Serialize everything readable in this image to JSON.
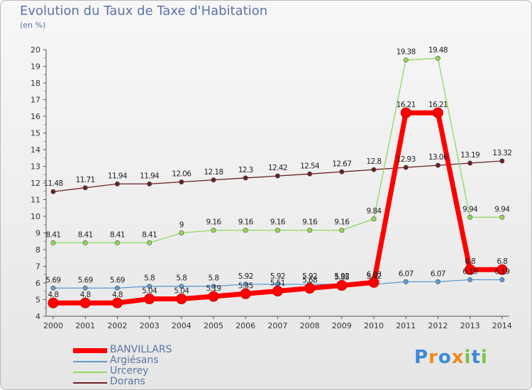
{
  "title": "Evolution du Taux de Taxe d'Habitation",
  "unit_label": "(en %)",
  "logo": {
    "text": "Proxiti",
    "colors": [
      "#3a8ad6",
      "#f08a1c",
      "#7cc242"
    ]
  },
  "chart_data": {
    "type": "line",
    "x": [
      "2000",
      "2001",
      "2002",
      "2003",
      "2004",
      "2005",
      "2006",
      "2007",
      "2008",
      "2009",
      "2010",
      "2011",
      "2012",
      "2013",
      "2014"
    ],
    "ylim": [
      4,
      20
    ],
    "yticks": [
      "4",
      "5",
      "6",
      "7",
      "8",
      "9",
      "10",
      "11",
      "12",
      "13",
      "14",
      "15",
      "16",
      "17",
      "18",
      "19",
      "20"
    ],
    "grid": false,
    "legend_position": "bottom-left",
    "series": [
      {
        "name": "Dorans",
        "color": "#6b1f24",
        "values": [
          11.48,
          11.71,
          11.94,
          11.94,
          12.06,
          12.18,
          12.3,
          12.42,
          12.54,
          12.67,
          12.8,
          12.93,
          13.06,
          13.19,
          13.32
        ],
        "labels": [
          "11.48",
          "11.71",
          "11.94",
          "11.94",
          "12.06",
          "12.18",
          "12.3",
          "12.42",
          "12.54",
          "12.67",
          "12.8",
          "12.93",
          "13.06",
          "13.19",
          "13.32"
        ]
      },
      {
        "name": "Urcerey",
        "color": "#8fd85a",
        "values": [
          8.41,
          8.41,
          8.41,
          8.41,
          9,
          9.16,
          9.16,
          9.16,
          9.16,
          9.16,
          9.84,
          19.38,
          19.48,
          9.94,
          9.94
        ],
        "labels": [
          "8.41",
          "8.41",
          "8.41",
          "8.41",
          "9",
          "9.16",
          "9.16",
          "9.16",
          "9.16",
          "9.16",
          "9.84",
          "19.38",
          "19.48",
          "9.94",
          "9.94"
        ]
      },
      {
        "name": "Argiésans",
        "color": "#5b9bd5",
        "values": [
          5.69,
          5.69,
          5.69,
          5.8,
          5.8,
          5.8,
          5.92,
          5.92,
          5.92,
          5.92,
          5.92,
          6.07,
          6.07,
          6.19,
          6.19
        ],
        "labels": [
          "5.69",
          "5.69",
          "5.69",
          "5.8",
          "5.8",
          "5.8",
          "5.92",
          "5.92",
          "5.92",
          "5.92",
          "5.92",
          "6.07",
          "6.07",
          "6.19",
          "6.19"
        ]
      },
      {
        "name": "BANVILLARS",
        "color": "#ff0000",
        "values": [
          4.8,
          4.8,
          4.8,
          5.04,
          5.04,
          5.19,
          5.35,
          5.51,
          5.68,
          5.85,
          6.03,
          16.21,
          16.21,
          6.8,
          6.8
        ],
        "labels": [
          "4.8",
          "4.8",
          "4.8",
          "5.04",
          "5.04",
          "5.19",
          "5.35",
          "5.51",
          "5.68",
          "5.85",
          "6.03",
          "16.21",
          "16.21",
          "6.8",
          "6.8"
        ]
      }
    ],
    "legend": [
      "BANVILLARS",
      "Argiésans",
      "Urcerey",
      "Dorans"
    ]
  }
}
